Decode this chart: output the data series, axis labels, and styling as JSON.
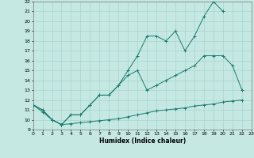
{
  "xlabel": "Humidex (Indice chaleur)",
  "bg_color": "#c5e8e3",
  "grid_color": "#a8d4cf",
  "line_color": "#1a7a6e",
  "xlim": [
    0,
    23
  ],
  "ylim": [
    9,
    22
  ],
  "xticks": [
    0,
    1,
    2,
    3,
    4,
    5,
    6,
    7,
    8,
    9,
    10,
    11,
    12,
    13,
    14,
    15,
    16,
    17,
    18,
    19,
    20,
    21,
    22,
    23
  ],
  "yticks": [
    9,
    10,
    11,
    12,
    13,
    14,
    15,
    16,
    17,
    18,
    19,
    20,
    21,
    22
  ],
  "series1_x": [
    0,
    1,
    2,
    3,
    4,
    5,
    6,
    7,
    8,
    9,
    10,
    11,
    12,
    13,
    14,
    15,
    16,
    17,
    18,
    19,
    20
  ],
  "series1_y": [
    11.5,
    11.0,
    10.0,
    9.5,
    10.5,
    10.5,
    11.5,
    12.5,
    12.5,
    13.5,
    15.0,
    16.5,
    18.5,
    18.5,
    18.0,
    19.0,
    17.0,
    18.5,
    20.5,
    22.0,
    21.0
  ],
  "series2_x": [
    0,
    1,
    2,
    3,
    4,
    5,
    6,
    7,
    8,
    9,
    10,
    11,
    12,
    13,
    14,
    15,
    16,
    17,
    18,
    19,
    20,
    21,
    22
  ],
  "series2_y": [
    11.5,
    11.0,
    10.0,
    9.5,
    10.5,
    10.5,
    11.5,
    12.5,
    12.5,
    13.5,
    14.5,
    15.0,
    13.0,
    13.5,
    14.0,
    14.5,
    15.0,
    15.5,
    16.5,
    16.5,
    16.5,
    15.5,
    13.0
  ],
  "series3_x": [
    0,
    1,
    2,
    3,
    4,
    5,
    6,
    7,
    8,
    9,
    10,
    11,
    12,
    13,
    14,
    15,
    16,
    17,
    18,
    19,
    20,
    21,
    22
  ],
  "series3_y": [
    11.5,
    10.8,
    10.0,
    9.5,
    9.6,
    9.7,
    9.8,
    9.9,
    10.0,
    10.1,
    10.3,
    10.5,
    10.7,
    10.9,
    11.0,
    11.1,
    11.2,
    11.4,
    11.5,
    11.6,
    11.8,
    11.9,
    12.0
  ]
}
